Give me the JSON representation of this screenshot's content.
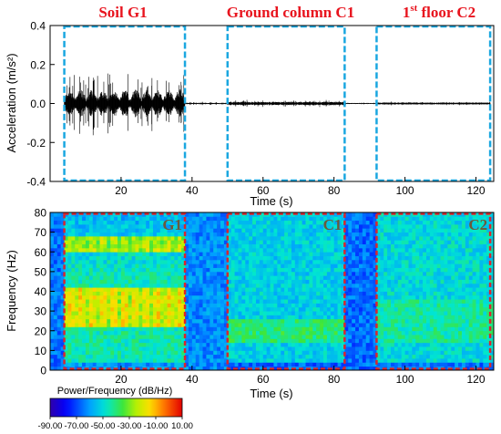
{
  "segments": [
    {
      "title": "Soil G1",
      "tag": "G1",
      "x0": 4,
      "x1": 38
    },
    {
      "title": "Ground column C1",
      "tag": "C1",
      "x0": 50,
      "x1": 83
    },
    {
      "title_prefix": "1",
      "title_sup": "st",
      "title_rest": " floor C2",
      "tag": "C2",
      "x0": 92,
      "x1": 124
    }
  ],
  "colors": {
    "title_red": "#e8141e",
    "box_blue": "#1aa7e0",
    "box_red": "#d8262d",
    "tag_text": "#6b5a3c",
    "signal": "#000000"
  },
  "chart_data": [
    {
      "type": "line",
      "name": "acceleration-time-history",
      "xlabel": "Time (s)",
      "ylabel": "Acceleration (m/s²)",
      "xlim": [
        0,
        125
      ],
      "ylim": [
        -0.4,
        0.4
      ],
      "xticks": [
        20,
        40,
        60,
        80,
        100,
        120
      ],
      "yticks": [
        -0.4,
        -0.2,
        0.0,
        0.2,
        0.4
      ],
      "ytick_labels": [
        "-0.4",
        "-0.2",
        "0.0",
        "0.2",
        "0.4"
      ],
      "grid": false,
      "series": [
        {
          "x_range": [
            4,
            38
          ],
          "peak_amplitude": 0.17,
          "typical_amplitude": 0.06
        },
        {
          "x_range": [
            38,
            50
          ],
          "peak_amplitude": 0.01,
          "typical_amplitude": 0.004
        },
        {
          "x_range": [
            50,
            83
          ],
          "peak_amplitude": 0.02,
          "typical_amplitude": 0.01
        },
        {
          "x_range": [
            83,
            92
          ],
          "peak_amplitude": 0.005,
          "typical_amplitude": 0.003
        },
        {
          "x_range": [
            92,
            124
          ],
          "peak_amplitude": 0.01,
          "typical_amplitude": 0.006
        }
      ]
    },
    {
      "type": "heatmap",
      "name": "spectrogram",
      "xlabel": "Time (s)",
      "ylabel": "Frequency (Hz)",
      "xlim": [
        0,
        125
      ],
      "ylim": [
        0,
        80
      ],
      "xticks": [
        20,
        40,
        60,
        80,
        100,
        120
      ],
      "yticks": [
        0,
        10,
        20,
        30,
        40,
        50,
        60,
        70,
        80
      ],
      "colorbar": {
        "label": "Power/Frequency (dB/Hz)",
        "range": [
          -90,
          10
        ],
        "ticks": [
          "-90.00",
          "-70.00",
          "-50.00",
          "-30.00",
          "-10.00",
          "10.00"
        ]
      },
      "segments_db": [
        {
          "x_range": [
            0,
            4
          ],
          "level_db": -65
        },
        {
          "x_range": [
            4,
            38
          ],
          "base_db": -45,
          "high_freq_decay_db": 12,
          "bands_hz": [
            [
              22,
              42
            ],
            [
              60,
              68
            ]
          ],
          "band_peak_db": -15
        },
        {
          "x_range": [
            38,
            50
          ],
          "level_db": -62
        },
        {
          "x_range": [
            50,
            83
          ],
          "base_db": -52,
          "bands_hz": [
            [
              15,
              25
            ]
          ],
          "band_peak_db": -40
        },
        {
          "x_range": [
            83,
            92
          ],
          "level_db": -66
        },
        {
          "x_range": [
            92,
            125
          ],
          "base_db": -50,
          "bands_hz": [
            [
              15,
              35
            ]
          ],
          "band_peak_db": -44
        }
      ]
    }
  ]
}
